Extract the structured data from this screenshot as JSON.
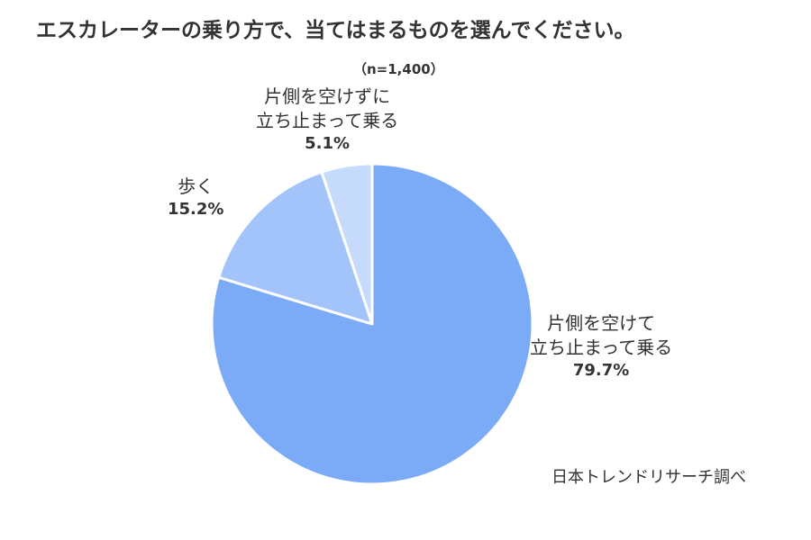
{
  "chart_data": {
    "type": "pie",
    "title": "エスカレーターの乗り方で、当てはまるものを選んでください。",
    "subtitle": "（n=1,400）",
    "slices": [
      {
        "label_lines": [
          "片側を空けて",
          "立ち止まって乗る"
        ],
        "value": 79.7,
        "pct_label": "79.7%",
        "color": "#7baaf7"
      },
      {
        "label_lines": [
          "歩く"
        ],
        "value": 15.2,
        "pct_label": "15.2%",
        "color": "#a3c4fa"
      },
      {
        "label_lines": [
          "片側を空けずに",
          "立ち止まって乗る"
        ],
        "value": 5.1,
        "pct_label": "5.1%",
        "color": "#c6dafc"
      }
    ],
    "start_angle": "12 o'clock",
    "direction": "clockwise",
    "source": "日本トレンドリサーチ調べ"
  }
}
